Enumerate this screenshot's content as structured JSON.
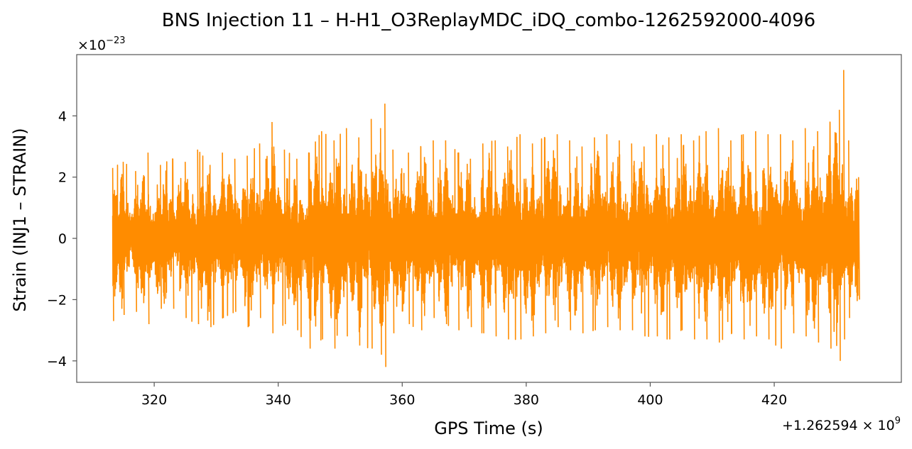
{
  "chart_data": {
    "type": "line",
    "title": "BNS Injection 11 – H-H1_O3ReplayMDC_iDQ_combo-1262592000-4096",
    "xlabel": "GPS Time (s)",
    "ylabel": "Strain (INJ1 – STRAIN)",
    "x_offset_label": "+1.262594",
    "x_offset_times": "×",
    "x_offset_base": "10",
    "x_offset_exp": "9",
    "y_scale_times": "×",
    "y_scale_base": "10",
    "y_scale_exp": "−23",
    "xlim": [
      307.5,
      440.5
    ],
    "ylim": [
      -4.7,
      6.0
    ],
    "xticks": [
      320,
      340,
      360,
      380,
      400,
      420
    ],
    "xtick_labels": [
      "320",
      "340",
      "360",
      "380",
      "400",
      "420"
    ],
    "yticks": [
      -4,
      -2,
      0,
      2,
      4
    ],
    "ytick_labels": [
      "−4",
      "−2",
      "0",
      "2",
      "4"
    ],
    "grid": true,
    "series": [
      {
        "color": "#ff8c00",
        "x_range": [
          313.3,
          433.6
        ],
        "envelope": [
          [
            313.3,
            2.3,
            -2.7
          ],
          [
            315.0,
            2.5,
            -2.5
          ],
          [
            317.0,
            2.2,
            -2.4
          ],
          [
            319.0,
            2.8,
            -2.8
          ],
          [
            321.0,
            2.4,
            -2.3
          ],
          [
            323.0,
            2.6,
            -2.3
          ],
          [
            325.0,
            2.5,
            -2.6
          ],
          [
            327.0,
            2.9,
            -2.8
          ],
          [
            329.0,
            2.4,
            -2.9
          ],
          [
            331.0,
            2.8,
            -2.6
          ],
          [
            333.0,
            2.6,
            -2.4
          ],
          [
            335.0,
            2.7,
            -2.9
          ],
          [
            337.0,
            3.1,
            -2.6
          ],
          [
            339.0,
            3.8,
            -3.1
          ],
          [
            341.0,
            2.9,
            -2.8
          ],
          [
            343.0,
            2.6,
            -3.0
          ],
          [
            345.0,
            2.8,
            -3.6
          ],
          [
            347.0,
            3.5,
            -3.3
          ],
          [
            349.0,
            3.2,
            -3.6
          ],
          [
            351.0,
            3.6,
            -3.2
          ],
          [
            353.0,
            3.3,
            -3.5
          ],
          [
            355.0,
            3.9,
            -3.6
          ],
          [
            356.5,
            3.6,
            -3.8
          ],
          [
            357.2,
            4.4,
            -4.2
          ],
          [
            358.5,
            2.9,
            -3.1
          ],
          [
            361.0,
            2.8,
            -2.8
          ],
          [
            363.0,
            3.0,
            -3.0
          ],
          [
            365.0,
            3.2,
            -2.6
          ],
          [
            367.0,
            3.2,
            -2.8
          ],
          [
            369.0,
            2.8,
            -3.0
          ],
          [
            371.0,
            2.6,
            -2.9
          ],
          [
            373.0,
            3.1,
            -3.1
          ],
          [
            375.0,
            3.2,
            -3.2
          ],
          [
            377.0,
            3.0,
            -3.3
          ],
          [
            379.0,
            3.4,
            -3.3
          ],
          [
            381.0,
            3.1,
            -3.2
          ],
          [
            383.0,
            3.3,
            -3.1
          ],
          [
            385.0,
            3.4,
            -2.9
          ],
          [
            387.0,
            3.2,
            -3.0
          ],
          [
            389.0,
            3.0,
            -3.1
          ],
          [
            391.0,
            3.3,
            -3.0
          ],
          [
            393.0,
            3.4,
            -2.9
          ],
          [
            395.0,
            3.2,
            -3.0
          ],
          [
            397.0,
            3.1,
            -3.0
          ],
          [
            399.0,
            3.0,
            -3.2
          ],
          [
            401.0,
            3.4,
            -3.2
          ],
          [
            403.0,
            3.3,
            -3.3
          ],
          [
            405.0,
            3.4,
            -3.0
          ],
          [
            407.0,
            3.2,
            -3.3
          ],
          [
            409.0,
            3.5,
            -3.3
          ],
          [
            411.0,
            3.6,
            -3.4
          ],
          [
            413.0,
            3.2,
            -3.1
          ],
          [
            415.0,
            3.4,
            -3.3
          ],
          [
            417.0,
            3.5,
            -3.2
          ],
          [
            419.0,
            3.4,
            -3.3
          ],
          [
            421.0,
            3.4,
            -3.6
          ],
          [
            423.0,
            3.2,
            -3.1
          ],
          [
            425.0,
            3.6,
            -3.2
          ],
          [
            427.0,
            3.5,
            -3.4
          ],
          [
            429.0,
            3.8,
            -3.6
          ],
          [
            430.5,
            4.2,
            -4.0
          ],
          [
            431.2,
            5.5,
            -3.3
          ],
          [
            432.0,
            3.2,
            -2.6
          ],
          [
            433.6,
            2.0,
            -2.0
          ]
        ]
      }
    ]
  }
}
